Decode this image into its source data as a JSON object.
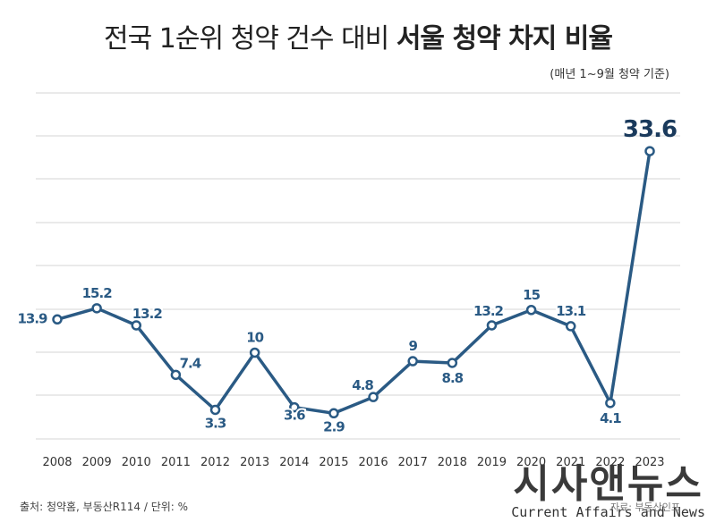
{
  "header": {
    "title_plain": "전국 1순위 청약 건수 대비",
    "title_bold": "서울 청약 차지 비율",
    "subtitle": "(매년 1~9월 청약 기준)"
  },
  "footer": {
    "source": "출처: 청약홈, 부동산R114 / 단위: %",
    "watermark_ko": "시사앤뉴스",
    "watermark_en": "Current Affairs and News",
    "watermark_note": "자료: 부동산인포"
  },
  "colors": {
    "line": "#2a5a84",
    "highlight": "#1a3a5c",
    "grid": "#d4d4d4"
  },
  "chart_data": {
    "type": "line",
    "categories": [
      "2008",
      "2009",
      "2010",
      "2011",
      "2012",
      "2013",
      "2014",
      "2015",
      "2016",
      "2017",
      "2018",
      "2019",
      "2020",
      "2021",
      "2022",
      "2023"
    ],
    "series": [
      {
        "values": [
          13.9,
          15.2,
          13.2,
          7.4,
          3.3,
          10,
          3.6,
          2.9,
          4.8,
          9,
          8.8,
          13.2,
          15,
          13.1,
          4.1,
          33.6
        ]
      }
    ],
    "data_labels": [
      "13.9",
      "15.2",
      "13.2",
      "7.4",
      "3.3",
      "10",
      "3.6",
      "2.9",
      "4.8",
      "9",
      "8.8",
      "13.2",
      "15",
      "13.1",
      "4.1",
      "33.6"
    ],
    "ylim": [
      0,
      36
    ],
    "grid": true,
    "highlight_index": 15
  }
}
